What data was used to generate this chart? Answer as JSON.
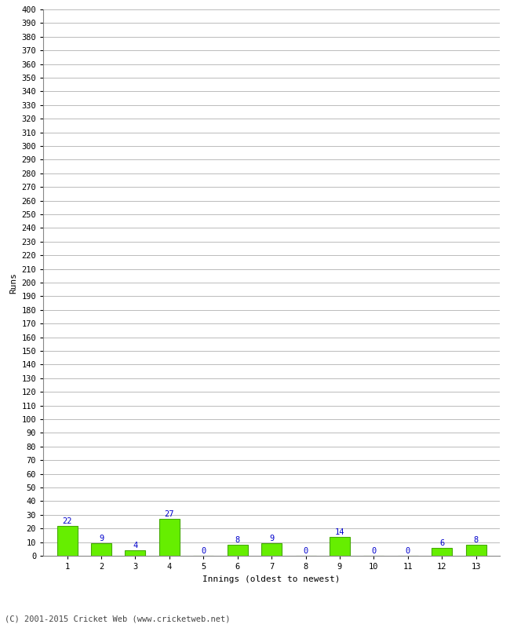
{
  "innings": [
    1,
    2,
    3,
    4,
    5,
    6,
    7,
    8,
    9,
    10,
    11,
    12,
    13
  ],
  "runs": [
    22,
    9,
    4,
    27,
    0,
    8,
    9,
    0,
    14,
    0,
    0,
    6,
    8
  ],
  "bar_color": "#66ee00",
  "bar_edge_color": "#44aa00",
  "label_color": "#0000cc",
  "ylabel": "Runs",
  "xlabel": "Innings (oldest to newest)",
  "ytick_min": 0,
  "ytick_max": 400,
  "ytick_major_step": 10,
  "background_color": "#ffffff",
  "grid_color": "#bbbbbb",
  "footer": "(C) 2001-2015 Cricket Web (www.cricketweb.net)",
  "label_fontsize": 7.5,
  "axis_label_fontsize": 8,
  "tick_fontsize": 7.5,
  "footer_fontsize": 7.5
}
